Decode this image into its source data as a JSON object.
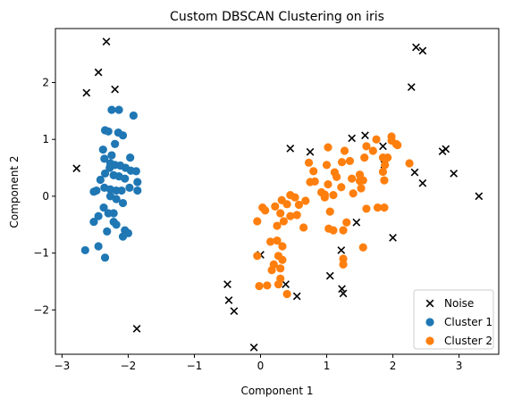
{
  "chart_data": {
    "type": "scatter",
    "title": "Custom DBSCAN Clustering on iris",
    "xlabel": "Component 1",
    "ylabel": "Component 2",
    "xlim": [
      -3.1,
      3.6
    ],
    "ylim": [
      -2.78,
      2.95
    ],
    "xticks": [
      -3,
      -2,
      -1,
      0,
      1,
      2,
      3
    ],
    "yticks": [
      -2,
      -1,
      0,
      1,
      2
    ],
    "grid": false,
    "legend_position": "bottom-right",
    "series": [
      {
        "name": "Noise",
        "marker": "x",
        "color": "#000000",
        "points": [
          [
            -2.33,
            2.72
          ],
          [
            -2.45,
            2.18
          ],
          [
            -2.63,
            1.82
          ],
          [
            -2.2,
            1.88
          ],
          [
            -2.78,
            0.49
          ],
          [
            -1.87,
            -2.33
          ],
          [
            -0.5,
            -1.55
          ],
          [
            -0.48,
            -1.83
          ],
          [
            -0.4,
            -2.02
          ],
          [
            -0.1,
            -2.66
          ],
          [
            0.0,
            -1.03
          ],
          [
            0.38,
            -1.55
          ],
          [
            0.45,
            0.84
          ],
          [
            0.55,
            -1.76
          ],
          [
            0.75,
            0.78
          ],
          [
            1.05,
            -1.4
          ],
          [
            1.22,
            -0.95
          ],
          [
            1.23,
            -1.63
          ],
          [
            1.25,
            -1.71
          ],
          [
            1.38,
            1.02
          ],
          [
            1.45,
            -0.46
          ],
          [
            1.58,
            1.07
          ],
          [
            1.85,
            0.88
          ],
          [
            1.87,
            0.56
          ],
          [
            2.0,
            -0.73
          ],
          [
            2.28,
            1.92
          ],
          [
            2.33,
            0.42
          ],
          [
            2.35,
            2.62
          ],
          [
            2.45,
            2.56
          ],
          [
            2.45,
            0.23
          ],
          [
            2.75,
            0.79
          ],
          [
            2.8,
            0.83
          ],
          [
            2.92,
            0.4
          ],
          [
            3.3,
            0.0
          ]
        ]
      },
      {
        "name": "Cluster 1",
        "marker": "circle",
        "color": "#1f77b4",
        "points": [
          [
            -2.25,
            1.52
          ],
          [
            -2.14,
            1.52
          ],
          [
            -1.92,
            1.42
          ],
          [
            -2.35,
            1.16
          ],
          [
            -2.3,
            1.14
          ],
          [
            -2.15,
            1.12
          ],
          [
            -2.08,
            1.07
          ],
          [
            -2.2,
            0.92
          ],
          [
            -2.38,
            0.82
          ],
          [
            -2.25,
            0.72
          ],
          [
            -2.36,
            0.66
          ],
          [
            -1.97,
            0.68
          ],
          [
            -2.27,
            0.58
          ],
          [
            -2.28,
            0.5
          ],
          [
            -2.2,
            0.55
          ],
          [
            -2.12,
            0.54
          ],
          [
            -2.04,
            0.5
          ],
          [
            -1.96,
            0.45
          ],
          [
            -1.88,
            0.44
          ],
          [
            -2.35,
            0.4
          ],
          [
            -2.22,
            0.37
          ],
          [
            -2.14,
            0.35
          ],
          [
            -2.42,
            0.29
          ],
          [
            -2.05,
            0.31
          ],
          [
            -1.86,
            0.25
          ],
          [
            -2.48,
            0.1
          ],
          [
            -2.36,
            0.15
          ],
          [
            -2.27,
            0.12
          ],
          [
            -2.18,
            0.1
          ],
          [
            -2.1,
            0.1
          ],
          [
            -1.98,
            0.15
          ],
          [
            -1.86,
            0.1
          ],
          [
            -2.52,
            0.08
          ],
          [
            -2.27,
            0.0
          ],
          [
            -2.18,
            -0.05
          ],
          [
            -2.08,
            -0.12
          ],
          [
            -2.37,
            -0.2
          ],
          [
            -2.3,
            -0.3
          ],
          [
            -2.22,
            -0.3
          ],
          [
            -2.45,
            -0.35
          ],
          [
            -2.52,
            -0.45
          ],
          [
            -2.22,
            -0.45
          ],
          [
            -2.18,
            -0.5
          ],
          [
            -2.05,
            -0.6
          ],
          [
            -2.0,
            -0.65
          ],
          [
            -2.32,
            -0.62
          ],
          [
            -2.08,
            -0.71
          ],
          [
            -2.45,
            -0.88
          ],
          [
            -2.65,
            -0.95
          ],
          [
            -2.35,
            -1.08
          ]
        ]
      },
      {
        "name": "Cluster 2",
        "marker": "circle",
        "color": "#ff7f0e",
        "points": [
          [
            1.75,
            1.0
          ],
          [
            1.98,
            1.05
          ],
          [
            1.98,
            0.98
          ],
          [
            2.05,
            0.92
          ],
          [
            2.07,
            0.9
          ],
          [
            1.6,
            0.88
          ],
          [
            1.7,
            0.8
          ],
          [
            1.02,
            0.86
          ],
          [
            1.27,
            0.8
          ],
          [
            1.85,
            0.68
          ],
          [
            1.92,
            0.68
          ],
          [
            1.57,
            0.68
          ],
          [
            2.25,
            0.58
          ],
          [
            1.35,
            0.62
          ],
          [
            1.23,
            0.6
          ],
          [
            0.73,
            0.59
          ],
          [
            1.0,
            0.55
          ],
          [
            1.88,
            0.55
          ],
          [
            0.8,
            0.44
          ],
          [
            1.85,
            0.43
          ],
          [
            1.5,
            0.38
          ],
          [
            1.12,
            0.42
          ],
          [
            1.15,
            0.34
          ],
          [
            1.38,
            0.31
          ],
          [
            1.5,
            0.27
          ],
          [
            1.55,
            0.28
          ],
          [
            1.87,
            0.28
          ],
          [
            0.75,
            0.25
          ],
          [
            0.82,
            0.26
          ],
          [
            1.02,
            0.21
          ],
          [
            1.22,
            0.16
          ],
          [
            1.52,
            0.14
          ],
          [
            0.92,
            0.07
          ],
          [
            0.97,
            0.03
          ],
          [
            1.4,
            0.05
          ],
          [
            1.1,
            0.02
          ],
          [
            0.45,
            0.02
          ],
          [
            0.52,
            -0.02
          ],
          [
            0.32,
            -0.07
          ],
          [
            0.68,
            -0.08
          ],
          [
            0.97,
            -0.02
          ],
          [
            0.03,
            -0.2
          ],
          [
            0.07,
            -0.25
          ],
          [
            0.4,
            -0.14
          ],
          [
            0.22,
            -0.18
          ],
          [
            0.58,
            -0.15
          ],
          [
            1.77,
            -0.2
          ],
          [
            1.87,
            -0.2
          ],
          [
            1.6,
            -0.22
          ],
          [
            1.05,
            -0.27
          ],
          [
            0.3,
            -0.3
          ],
          [
            0.45,
            -0.35
          ],
          [
            0.55,
            -0.33
          ],
          [
            -0.05,
            -0.44
          ],
          [
            0.35,
            -0.44
          ],
          [
            1.3,
            -0.46
          ],
          [
            0.65,
            -0.55
          ],
          [
            0.25,
            -0.52
          ],
          [
            1.03,
            -0.57
          ],
          [
            1.1,
            -0.6
          ],
          [
            1.25,
            -0.6
          ],
          [
            0.25,
            -0.78
          ],
          [
            0.15,
            -0.8
          ],
          [
            0.33,
            -0.88
          ],
          [
            1.55,
            -0.9
          ],
          [
            0.27,
            -1.05
          ],
          [
            -0.05,
            -1.05
          ],
          [
            0.33,
            -1.12
          ],
          [
            0.2,
            -1.2
          ],
          [
            1.25,
            -1.1
          ],
          [
            1.25,
            -1.2
          ],
          [
            0.3,
            -1.27
          ],
          [
            0.17,
            -1.3
          ],
          [
            0.27,
            -1.55
          ],
          [
            0.3,
            -1.45
          ],
          [
            0.1,
            -1.57
          ],
          [
            -0.02,
            -1.58
          ],
          [
            0.4,
            -1.72
          ]
        ]
      }
    ]
  }
}
